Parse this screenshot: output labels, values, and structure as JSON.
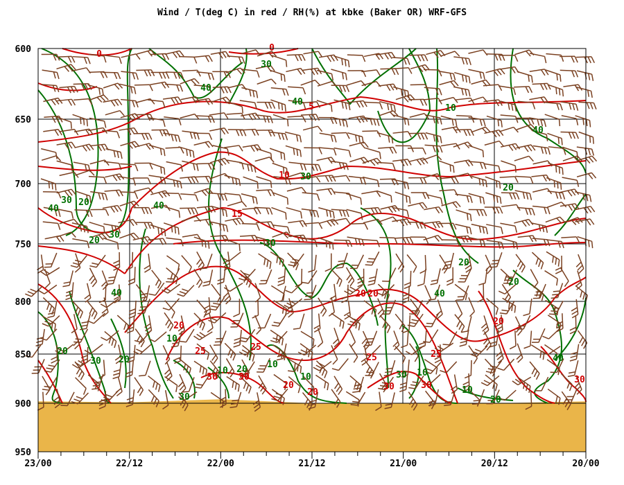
{
  "chart_data": {
    "type": "line",
    "title": "Wind / T(deg C) in red / RH(%) at kbke (Baker OR)  WRF-GFS",
    "x_ticks": [
      "23/00",
      "22/12",
      "22/00",
      "21/12",
      "21/00",
      "20/12",
      "20/00"
    ],
    "y_ticks": [
      600,
      650,
      700,
      750,
      800,
      850,
      900,
      950
    ],
    "ylim": [
      950,
      600
    ],
    "ylabel_unit": "mb",
    "grid": true,
    "colors": {
      "temperature": "#d00000",
      "relative_humidity": "#007000",
      "wind": "#7a4020",
      "terrain": "#eab549",
      "grid": "#000000"
    },
    "temperature_labels": [
      "0",
      "0",
      "5",
      "10",
      "15",
      "20",
      "20",
      "20",
      "20",
      "25",
      "25",
      "25",
      "25",
      "20",
      "30",
      "30",
      "30",
      "20",
      "30",
      "30"
    ],
    "rh_labels": [
      "30",
      "40",
      "40",
      "10",
      "30",
      "40",
      "30",
      "40",
      "30",
      "20",
      "30",
      "20",
      "40",
      "40",
      "20",
      "20",
      "40",
      "10",
      "10",
      "20",
      "10",
      "30",
      "10",
      "10",
      "10",
      "20",
      "30",
      "30",
      "20",
      "20",
      "20",
      "40",
      "30"
    ],
    "surface_pressure_trace": [
      {
        "x": "23/00",
        "p": 898
      },
      {
        "x": "22/12",
        "p": 899
      },
      {
        "x": "22/00",
        "p": 896
      },
      {
        "x": "21/12",
        "p": 900
      },
      {
        "x": "21/00",
        "p": 900
      },
      {
        "x": "20/12",
        "p": 900
      },
      {
        "x": "20/00",
        "p": 898
      }
    ]
  }
}
